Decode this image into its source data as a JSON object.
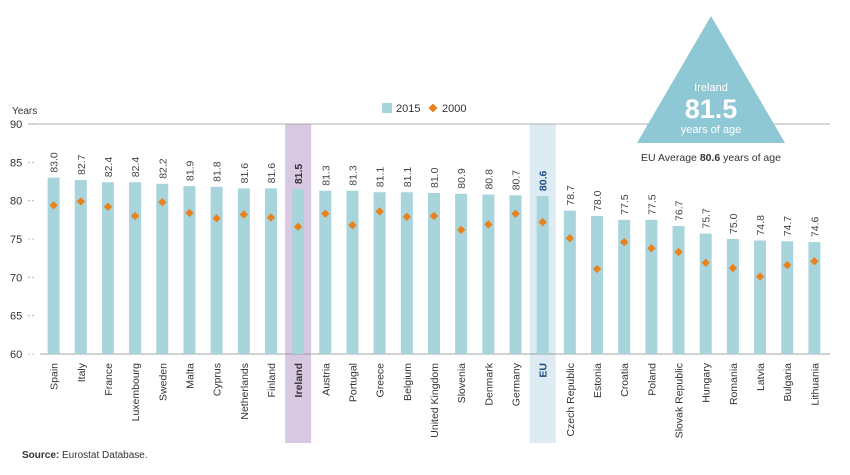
{
  "chart_data": {
    "type": "bar",
    "ylabel": "Years",
    "ylim": [
      60,
      90
    ],
    "yticks": [
      60,
      65,
      70,
      75,
      80,
      85,
      90
    ],
    "grid": false,
    "legend_position": "top-center",
    "categories": [
      "Spain",
      "Italy",
      "France",
      "Luxembourg",
      "Sweden",
      "Malta",
      "Cyprus",
      "Netherlands",
      "Finland",
      "Ireland",
      "Austria",
      "Portugal",
      "Greece",
      "Belgium",
      "United Kingdom",
      "Slovenia",
      "Denmark",
      "Germany",
      "EU",
      "Czech Republic",
      "Estonia",
      "Croatia",
      "Poland",
      "Slovak Republic",
      "Hungary",
      "Romania",
      "Latvia",
      "Bulgaria",
      "Lithuania"
    ],
    "series": [
      {
        "name": "2015",
        "kind": "bar",
        "color": "#a8d4dc",
        "values": [
          83.0,
          82.7,
          82.4,
          82.4,
          82.2,
          81.9,
          81.8,
          81.6,
          81.6,
          81.5,
          81.3,
          81.3,
          81.1,
          81.1,
          81.0,
          80.9,
          80.8,
          80.7,
          80.6,
          78.7,
          78.0,
          77.5,
          77.5,
          76.7,
          75.7,
          75.0,
          74.8,
          74.7,
          74.6
        ]
      },
      {
        "name": "2000",
        "kind": "marker",
        "color": "#e8821e",
        "values": [
          79.4,
          79.9,
          79.2,
          78.0,
          79.8,
          78.4,
          77.7,
          78.2,
          77.8,
          76.6,
          78.3,
          76.8,
          78.6,
          77.9,
          78.0,
          76.2,
          76.9,
          78.3,
          77.2,
          75.1,
          71.1,
          74.6,
          73.8,
          73.3,
          71.9,
          71.2,
          70.1,
          71.6,
          72.1
        ]
      }
    ],
    "value_labels": [
      "83.0",
      "82.7",
      "82.4",
      "82.4",
      "82.2",
      "81.9",
      "81.8",
      "81.6",
      "81.6",
      "81.5",
      "81.3",
      "81.3",
      "81.1",
      "81.1",
      "81.0",
      "80.9",
      "80.8",
      "80.7",
      "80.6",
      "78.7",
      "78.0",
      "77.5",
      "77.5",
      "76.7",
      "75.7",
      "75.0",
      "74.8",
      "74.7",
      "74.6"
    ],
    "highlights": [
      {
        "category": "Ireland",
        "color": "#d8c8e2",
        "label_color": "#333333"
      },
      {
        "category": "EU",
        "color": "#dcecf2",
        "label_color": "#1f4e8c"
      }
    ],
    "callout": {
      "country": "Ireland",
      "value": "81.5",
      "unit": "years of age",
      "color": "#8ec8d4",
      "eu_prefix": "EU Average",
      "eu_value": "80.6",
      "eu_suffix": "years of age"
    }
  },
  "source": {
    "label": "Source:",
    "text": "Eurostat Database."
  }
}
